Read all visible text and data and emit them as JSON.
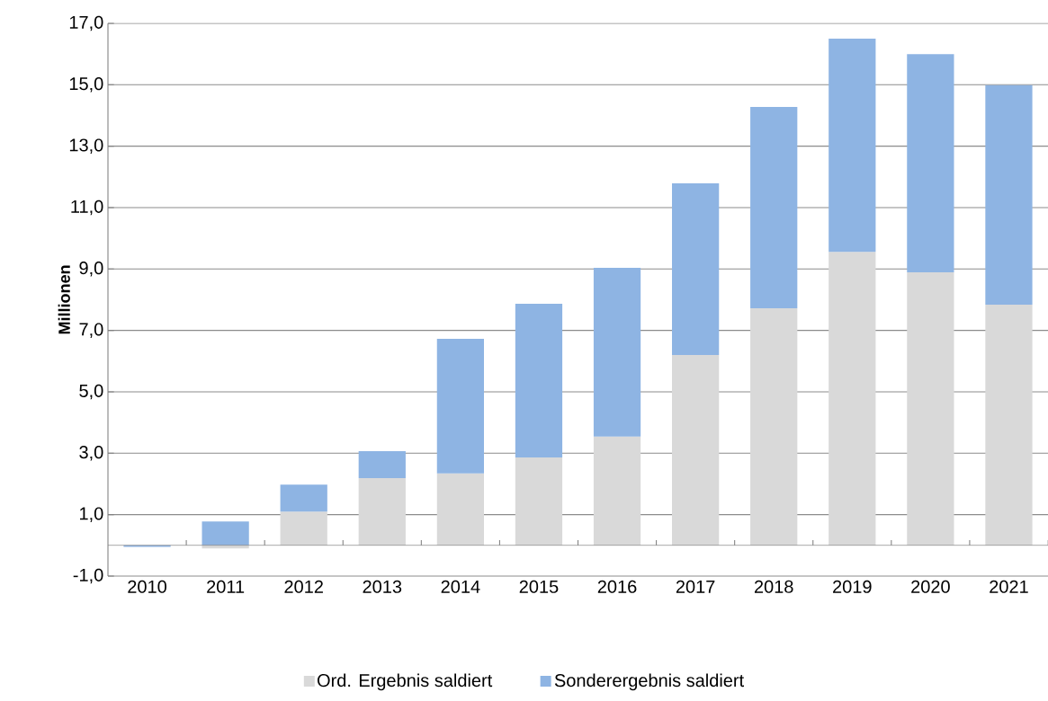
{
  "chart_data": {
    "type": "bar",
    "stacked": true,
    "ylabel": "Millionen",
    "categories": [
      "2010",
      "2011",
      "2012",
      "2013",
      "2014",
      "2015",
      "2016",
      "2017",
      "2018",
      "2019",
      "2020",
      "2021"
    ],
    "series": [
      {
        "name": "Ord. Ergebnis saldiert",
        "color": "#d9d9d9",
        "values": [
          null,
          -0.1,
          1.1,
          2.19,
          2.34,
          2.86,
          3.54,
          6.2,
          7.72,
          9.56,
          8.89,
          7.84
        ]
      },
      {
        "name": "Sonderergebnis saldiert",
        "color": "#8eb4e3",
        "values": [
          -0.05,
          0.78,
          0.88,
          0.88,
          4.39,
          5.01,
          5.5,
          5.59,
          6.56,
          6.94,
          7.11,
          7.15
        ]
      }
    ],
    "ylim": [
      -1,
      17
    ],
    "yticks": [
      {
        "value": -1,
        "label": "-1,0"
      },
      {
        "value": 1,
        "label": "1,0"
      },
      {
        "value": 3,
        "label": "3,0"
      },
      {
        "value": 5,
        "label": "5,0"
      },
      {
        "value": 7,
        "label": "7,0"
      },
      {
        "value": 9,
        "label": "9,0"
      },
      {
        "value": 11,
        "label": "11,0"
      },
      {
        "value": 13,
        "label": "13,0"
      },
      {
        "value": 15,
        "label": "15,0"
      },
      {
        "value": 17,
        "label": "17,0"
      }
    ],
    "ref_lines": [
      {
        "axis": "y",
        "value": 0,
        "color": "#808080"
      }
    ],
    "grid": "y",
    "legend": "bottom"
  }
}
